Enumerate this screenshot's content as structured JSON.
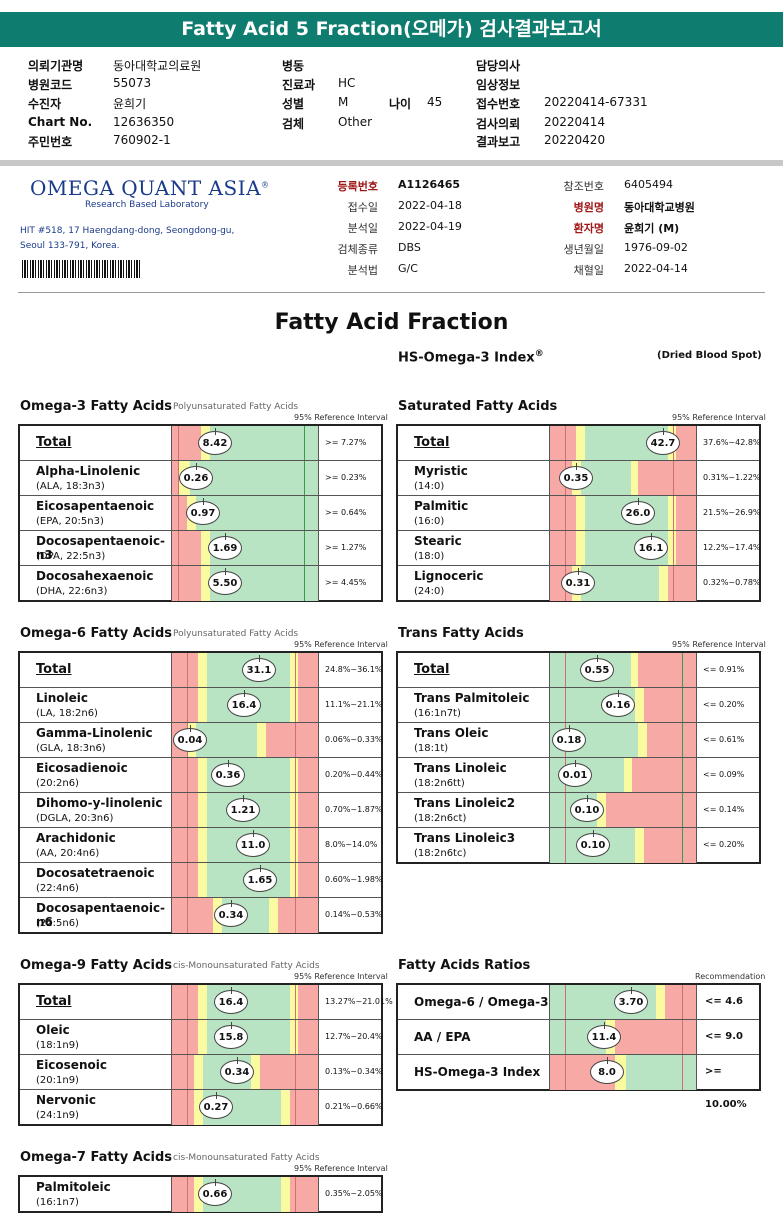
{
  "banner": "Fatty Acid 5 Fraction(오메가) 검사결과보고서",
  "patient": {
    "c1": [
      [
        "의뢰기관명",
        "동아대학교의료원"
      ],
      [
        "병원코드",
        "55073"
      ],
      [
        "수진자",
        "윤희기"
      ],
      [
        "Chart No.",
        "12636350"
      ],
      [
        "주민번호",
        "760902-1"
      ]
    ],
    "c2": [
      [
        "병동",
        ""
      ],
      [
        "진료과",
        "HC"
      ],
      [
        "성별",
        "M"
      ],
      [
        "검체",
        "Other"
      ]
    ],
    "age_label": "나이",
    "age": "45",
    "c3": [
      [
        "담당의사",
        ""
      ],
      [
        "임상정보",
        ""
      ],
      [
        "접수번호",
        "20220414-67331"
      ],
      [
        "검사의뢰",
        "20220414"
      ],
      [
        "결과보고",
        "20220420"
      ]
    ]
  },
  "lab": {
    "logo": "OMEGA QUANT ASIA",
    "reg": "®",
    "tagline": "Research Based Laboratory",
    "addr1": "HIT #518, 17 Haengdang-dong, Seongdong-gu,",
    "addr2": "Seoul 133-791, Korea."
  },
  "info_left": [
    [
      "등록번호",
      "A1126465"
    ],
    [
      "접수일",
      "2022-04-18"
    ],
    [
      "분석일",
      "2022-04-19"
    ],
    [
      "검체종류",
      "DBS"
    ],
    [
      "분석법",
      "G/C"
    ]
  ],
  "info_right": [
    [
      "참조번호",
      "6405494"
    ],
    [
      "병원명",
      "동아대학교병원"
    ],
    [
      "환자명",
      "윤희기 (M)"
    ],
    [
      "생년월일",
      "1976-09-02"
    ],
    [
      "채혈일",
      "2022-04-14"
    ]
  ],
  "page_title": "Fatty Acid Fraction",
  "hs_title": "HS-Omega-3 Index",
  "hs_reg": "®",
  "dried": "(Dried Blood Spot)",
  "sections": {
    "o3": {
      "title": "Omega-3 Fatty Acids",
      "sub": "Polyunsaturated Fatty Acids",
      "ref": "95% Reference Interval",
      "rows": [
        {
          "name": "Total",
          "total": true,
          "value": "8.42",
          "pos": 0.29,
          "range": ">= 7.27%"
        },
        {
          "name": "Alpha-Linolenic",
          "sub": "(ALA, 18:3n3)",
          "value": "0.26",
          "pos": 0.16,
          "range": ">= 0.23%"
        },
        {
          "name": "Eicosapentaenoic",
          "sub": "(EPA, 20:5n3)",
          "value": "0.97",
          "pos": 0.21,
          "range": ">= 0.64%"
        },
        {
          "name": "Docosapentaenoic-n3",
          "sub": "(DPA, 22:5n3)",
          "value": "1.69",
          "pos": 0.36,
          "range": ">= 1.27%"
        },
        {
          "name": "Docosahexaenoic",
          "sub": "(DHA, 22:6n3)",
          "value": "5.50",
          "pos": 0.36,
          "range": ">= 4.45%"
        }
      ]
    },
    "sat": {
      "title": "Saturated Fatty Acids",
      "ref": "95% Reference Interval",
      "rows": [
        {
          "name": "Total",
          "total": true,
          "value": "42.7",
          "pos": 0.77,
          "range": "37.6%~42.8%"
        },
        {
          "name": "Myristic",
          "sub": "(14:0)",
          "value": "0.35",
          "pos": 0.18,
          "range": "0.31%~1.22%"
        },
        {
          "name": "Palmitic",
          "sub": "(16:0)",
          "value": "26.0",
          "pos": 0.6,
          "range": "21.5%~26.9%"
        },
        {
          "name": "Stearic",
          "sub": "(18:0)",
          "value": "16.1",
          "pos": 0.69,
          "range": "12.2%~17.4%"
        },
        {
          "name": "Lignoceric",
          "sub": "(24:0)",
          "value": "0.31",
          "pos": 0.19,
          "range": "0.32%~0.78%"
        }
      ]
    },
    "o6": {
      "title": "Omega-6 Fatty Acids",
      "sub": "Polyunsaturated Fatty Acids",
      "ref": "95% Reference Interval",
      "rows": [
        {
          "name": "Total",
          "total": true,
          "value": "31.1",
          "pos": 0.59,
          "range": "24.8%~36.1%"
        },
        {
          "name": "Linoleic",
          "sub": "(LA, 18:2n6)",
          "value": "16.4",
          "pos": 0.49,
          "range": "11.1%~21.1%"
        },
        {
          "name": "Gamma-Linolenic",
          "sub": "(GLA, 18:3n6)",
          "value": "0.04",
          "pos": 0.12,
          "range": "0.06%~0.33%"
        },
        {
          "name": "Eicosadienoic",
          "sub": "(20:2n6)",
          "value": "0.36",
          "pos": 0.38,
          "range": "0.20%~0.44%"
        },
        {
          "name": "Dihomo-y-linolenic",
          "sub": "(DGLA, 20:3n6)",
          "value": "1.21",
          "pos": 0.48,
          "range": "0.70%~1.87%"
        },
        {
          "name": "Arachidonic",
          "sub": "(AA, 20:4n6)",
          "value": "11.0",
          "pos": 0.55,
          "range": "8.0%~14.0%"
        },
        {
          "name": "Docosatetraenoic",
          "sub": "(22:4n6)",
          "value": "1.65",
          "pos": 0.6,
          "range": "0.60%~1.98%"
        },
        {
          "name": "Docosapentaenoic-n6",
          "sub": "(22:5n6)",
          "value": "0.34",
          "pos": 0.4,
          "range": "0.14%~0.53%"
        }
      ]
    },
    "trans": {
      "title": "Trans Fatty Acids",
      "ref": "95% Reference Interval",
      "rows": [
        {
          "name": "Total",
          "total": true,
          "value": "0.55",
          "pos": 0.32,
          "range": "<= 0.91%"
        },
        {
          "name": "Trans Palmitoleic",
          "sub": "(16:1n7t)",
          "value": "0.16",
          "pos": 0.46,
          "range": "<= 0.20%"
        },
        {
          "name": "Trans Oleic",
          "sub": "(18:1t)",
          "value": "0.18",
          "pos": 0.13,
          "range": "<= 0.61%"
        },
        {
          "name": "Trans Linoleic",
          "sub": "(18:2n6tt)",
          "value": "0.01",
          "pos": 0.17,
          "range": "<= 0.09%"
        },
        {
          "name": "Trans Linoleic2",
          "sub": "(18:2n6ct)",
          "value": "0.10",
          "pos": 0.25,
          "range": "<= 0.14%"
        },
        {
          "name": "Trans Linoleic3",
          "sub": "(18:2n6tc)",
          "value": "0.10",
          "pos": 0.29,
          "range": "<= 0.20%"
        }
      ]
    },
    "o9": {
      "title": "Omega-9 Fatty Acids",
      "sub": "cis-Monounsaturated Fatty Acids",
      "ref": "95% Reference Interval",
      "rows": [
        {
          "name": "Total",
          "total": true,
          "value": "16.4",
          "pos": 0.4,
          "range": "13.27%~21.01%"
        },
        {
          "name": "Oleic",
          "sub": "(18:1n9)",
          "value": "15.8",
          "pos": 0.4,
          "range": "12.7%~20.4%"
        },
        {
          "name": "Eicosenoic",
          "sub": "(20:1n9)",
          "value": "0.34",
          "pos": 0.44,
          "range": "0.13%~0.34%"
        },
        {
          "name": "Nervonic",
          "sub": "(24:1n9)",
          "value": "0.27",
          "pos": 0.3,
          "range": "0.21%~0.66%"
        }
      ]
    },
    "ratio": {
      "title": "Fatty Acids Ratios",
      "ref": "Recommendation",
      "rows": [
        {
          "name": "Omega-6 / Omega-3",
          "big": true,
          "value": "3.70",
          "pos": 0.55,
          "range": "<= 4.6"
        },
        {
          "name": "AA / EPA",
          "big": true,
          "value": "11.4",
          "pos": 0.37,
          "range": "<= 9.0"
        },
        {
          "name": "HS-Omega-3 Index",
          "big": true,
          "value": "8.0",
          "pos": 0.39,
          "range": ">= 10.00%"
        }
      ]
    },
    "o7": {
      "title": "Omega-7 Fatty Acids",
      "sub": "cis-Monounsaturated Fatty Acids",
      "ref": "95% Reference Interval",
      "rows": [
        {
          "name": "Palmitoleic",
          "sub": "(16:1n7)",
          "value": "0.66",
          "pos": 0.29,
          "range": "0.35%~2.05%"
        }
      ]
    }
  },
  "colors": {
    "red": "#f7aaa5",
    "yellow": "#fafaa0",
    "green": "#b9e4c3",
    "banner": "#0f7c70"
  }
}
